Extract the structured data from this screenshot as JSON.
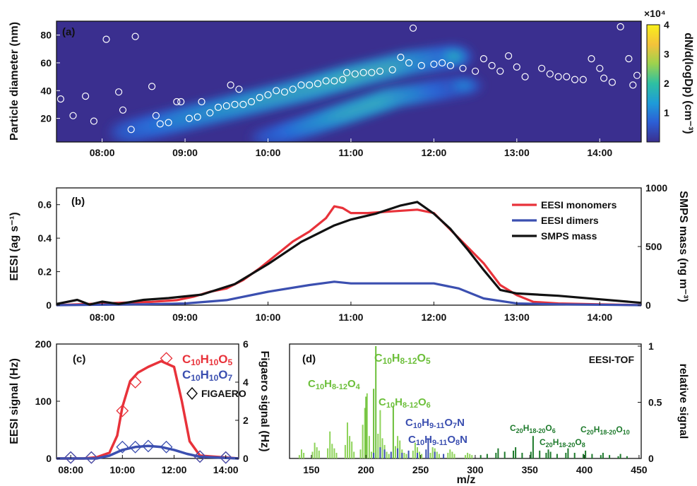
{
  "chart_data": [
    {
      "panel": "(a)",
      "type": "heatmap",
      "ylabel": "Particle diameter (nm)",
      "x_ticks": [
        "08:00",
        "09:00",
        "10:00",
        "11:00",
        "12:00",
        "13:00",
        "14:00"
      ],
      "y_ticks": [
        "20",
        "40",
        "60",
        "80"
      ],
      "xlim": [
        7.45,
        14.5
      ],
      "ylim": [
        3,
        90
      ],
      "colorbar": {
        "label": "dN/d(logDp) (cm⁻³)",
        "multiplier": "×10⁴",
        "ticks": [
          "1",
          "2",
          "3",
          "4"
        ],
        "range": [
          0,
          4
        ],
        "colors": [
          "#3a2f8f",
          "#2c5fd6",
          "#1e9bd9",
          "#2ec0a2",
          "#9ed24d",
          "#f3c23b",
          "#f9f01a"
        ]
      },
      "modes": [
        {
          "points": [
            [
              8.3,
              10,
              0.3
            ],
            [
              9.0,
              20,
              0.6
            ],
            [
              9.7,
              30,
              0.75
            ],
            [
              10.4,
              40,
              0.85
            ],
            [
              11.0,
              50,
              0.95
            ],
            [
              11.7,
              60,
              0.85
            ],
            [
              12.3,
              65,
              0.45
            ]
          ]
        },
        {
          "points": [
            [
              10.0,
              6,
              0.25
            ],
            [
              10.5,
              15,
              0.6
            ],
            [
              11.0,
              25,
              0.9
            ],
            [
              11.5,
              35,
              0.95
            ],
            [
              12.0,
              40,
              0.6
            ],
            [
              12.4,
              44,
              0.3
            ]
          ]
        }
      ],
      "circles": [
        [
          7.5,
          34
        ],
        [
          7.65,
          22
        ],
        [
          7.8,
          36
        ],
        [
          7.9,
          18
        ],
        [
          8.05,
          77
        ],
        [
          8.2,
          39
        ],
        [
          8.25,
          26
        ],
        [
          8.35,
          12
        ],
        [
          8.4,
          79
        ],
        [
          8.6,
          43
        ],
        [
          8.65,
          22
        ],
        [
          8.7,
          16
        ],
        [
          8.8,
          17
        ],
        [
          8.9,
          32
        ],
        [
          8.95,
          32
        ],
        [
          9.05,
          20
        ],
        [
          9.15,
          21
        ],
        [
          9.2,
          32
        ],
        [
          9.3,
          24
        ],
        [
          9.4,
          28
        ],
        [
          9.5,
          29
        ],
        [
          9.55,
          44
        ],
        [
          9.6,
          30
        ],
        [
          9.65,
          41
        ],
        [
          9.7,
          30
        ],
        [
          9.8,
          32
        ],
        [
          9.9,
          35
        ],
        [
          10.0,
          37
        ],
        [
          10.1,
          40
        ],
        [
          10.2,
          39
        ],
        [
          10.3,
          41
        ],
        [
          10.4,
          44
        ],
        [
          10.5,
          44
        ],
        [
          10.6,
          45
        ],
        [
          10.7,
          47
        ],
        [
          10.8,
          47
        ],
        [
          10.9,
          48
        ],
        [
          10.95,
          53
        ],
        [
          11.05,
          52
        ],
        [
          11.15,
          53
        ],
        [
          11.25,
          53
        ],
        [
          11.35,
          54
        ],
        [
          11.5,
          55
        ],
        [
          11.6,
          64
        ],
        [
          11.7,
          60
        ],
        [
          11.75,
          85
        ],
        [
          11.85,
          58
        ],
        [
          12.0,
          59
        ],
        [
          12.1,
          60
        ],
        [
          12.2,
          58
        ],
        [
          12.35,
          56
        ],
        [
          12.5,
          54
        ],
        [
          12.6,
          63
        ],
        [
          12.7,
          58
        ],
        [
          12.8,
          54
        ],
        [
          12.9,
          65
        ],
        [
          13.0,
          57
        ],
        [
          13.1,
          50
        ],
        [
          13.3,
          56
        ],
        [
          13.4,
          52
        ],
        [
          13.5,
          50
        ],
        [
          13.6,
          50
        ],
        [
          13.7,
          48
        ],
        [
          13.8,
          48
        ],
        [
          13.9,
          63
        ],
        [
          14.0,
          56
        ],
        [
          14.05,
          49
        ],
        [
          14.15,
          46
        ],
        [
          14.25,
          86
        ],
        [
          14.35,
          63
        ],
        [
          14.4,
          44
        ],
        [
          14.45,
          51
        ]
      ]
    },
    {
      "panel": "(b)",
      "type": "line",
      "ylabel": "EESI (ag s⁻¹)",
      "y2label": "SMPS mass (ng m⁻³)",
      "x_ticks": [
        "08:00",
        "09:00",
        "10:00",
        "11:00",
        "12:00",
        "13:00",
        "14:00"
      ],
      "y_ticks": [
        "0",
        "0.2",
        "0.4",
        "0.6"
      ],
      "y2_ticks": [
        "0",
        "500",
        "1000"
      ],
      "xlim": [
        7.45,
        14.5
      ],
      "ylim": [
        0,
        0.7
      ],
      "y2lim": [
        0,
        1000
      ],
      "legend_position": "top-right",
      "series": [
        {
          "name": "EESI monomers",
          "color": "#e8323a",
          "axis": "left",
          "x": [
            7.45,
            7.7,
            8.0,
            8.3,
            8.6,
            8.9,
            9.1,
            9.3,
            9.5,
            9.7,
            9.9,
            10.1,
            10.3,
            10.5,
            10.7,
            10.8,
            10.9,
            11.0,
            11.2,
            11.5,
            11.8,
            12.0,
            12.2,
            12.4,
            12.6,
            12.8,
            13.0,
            13.2,
            13.5,
            14.0,
            14.5
          ],
          "y": [
            0,
            0.005,
            0.01,
            0.015,
            0.02,
            0.03,
            0.05,
            0.08,
            0.1,
            0.15,
            0.22,
            0.3,
            0.38,
            0.44,
            0.52,
            0.59,
            0.58,
            0.55,
            0.55,
            0.56,
            0.57,
            0.55,
            0.45,
            0.35,
            0.25,
            0.12,
            0.06,
            0.02,
            0.01,
            0.005,
            0
          ]
        },
        {
          "name": "EESI dimers",
          "color": "#3b4fb0",
          "axis": "left",
          "x": [
            7.45,
            8.5,
            9.0,
            9.5,
            10.0,
            10.5,
            10.8,
            11.0,
            11.5,
            12.0,
            12.3,
            12.6,
            13.0,
            13.5,
            14.5
          ],
          "y": [
            0,
            0.005,
            0.01,
            0.03,
            0.08,
            0.12,
            0.14,
            0.13,
            0.13,
            0.13,
            0.1,
            0.04,
            0.01,
            0.005,
            0
          ]
        },
        {
          "name": "SMPS mass",
          "color": "#111111",
          "axis": "right",
          "x": [
            7.45,
            7.7,
            7.85,
            8.0,
            8.2,
            8.5,
            8.8,
            9.2,
            9.6,
            10.0,
            10.4,
            10.8,
            11.0,
            11.3,
            11.6,
            11.8,
            12.0,
            12.2,
            12.4,
            12.6,
            12.8,
            13.0,
            13.5,
            14.0,
            14.5
          ],
          "y": [
            10,
            45,
            5,
            30,
            10,
            45,
            60,
            90,
            180,
            350,
            540,
            680,
            730,
            780,
            850,
            880,
            780,
            650,
            480,
            300,
            130,
            100,
            80,
            50,
            20
          ]
        }
      ]
    },
    {
      "panel": "(c)",
      "type": "line",
      "ylabel": "EESI signal (Hz)",
      "y2label": "Figaero signal (Hz)",
      "x_ticks": [
        "08:00",
        "10:00",
        "12:00",
        "14:00"
      ],
      "y_ticks": [
        "0",
        "100",
        "200"
      ],
      "y2_ticks": [
        "0",
        "2",
        "4",
        "6"
      ],
      "xlim": [
        7.45,
        14.5
      ],
      "ylim": [
        0,
        200
      ],
      "y2lim": [
        0,
        6
      ],
      "legend": [
        {
          "parts": [
            "C",
            "10",
            "H",
            "10",
            "O",
            "5"
          ],
          "color": "#e8323a"
        },
        {
          "parts": [
            "C",
            "10",
            "H",
            "10",
            "O",
            "7"
          ],
          "color": "#3b4fb0"
        },
        {
          "label": "FIGAERO",
          "color": "#111111"
        }
      ],
      "series": [
        {
          "name": "C10H10O5",
          "color": "#e8323a",
          "axis": "left",
          "x": [
            7.45,
            8.5,
            9.0,
            9.5,
            9.8,
            10.0,
            10.3,
            10.6,
            11.0,
            11.5,
            12.0,
            12.3,
            12.6,
            13.0,
            14.5
          ],
          "y": [
            0,
            0,
            2,
            10,
            40,
            90,
            135,
            150,
            160,
            170,
            160,
            100,
            30,
            5,
            0
          ]
        },
        {
          "name": "C10H10O7",
          "color": "#3b4fb0",
          "axis": "left",
          "x": [
            7.45,
            9.0,
            9.5,
            10.0,
            10.5,
            11.0,
            11.5,
            12.0,
            12.5,
            13.0,
            14.5
          ],
          "y": [
            0,
            0,
            5,
            15,
            20,
            22,
            20,
            15,
            8,
            3,
            0
          ]
        }
      ],
      "markers": [
        {
          "color": "#e8323a",
          "axis": "right",
          "x": [
            8.0,
            8.8,
            10.0,
            10.5,
            11.7,
            13.0,
            14.0
          ],
          "y": [
            0.05,
            0.05,
            2.5,
            4.0,
            5.25,
            0.1,
            0.05
          ]
        },
        {
          "color": "#3b4fb0",
          "axis": "right",
          "x": [
            8.0,
            8.8,
            10.0,
            10.5,
            11.0,
            11.7,
            13.0,
            14.0
          ],
          "y": [
            0.05,
            0.05,
            0.6,
            0.6,
            0.65,
            0.6,
            0.1,
            0.05
          ]
        }
      ]
    },
    {
      "panel": "(d)",
      "type": "bar",
      "title": "EESI-TOF",
      "xlabel": "m/z",
      "y2label": "relative signal",
      "x_ticks": [
        "150",
        "200",
        "250",
        "300",
        "350",
        "400",
        "450"
      ],
      "y2_ticks": [
        "0",
        "0.5",
        "1"
      ],
      "xlim": [
        130,
        452
      ],
      "ylim": [
        0,
        1
      ],
      "annotations": [
        {
          "parts": [
            "C",
            "10",
            "H",
            "8-12",
            "O",
            "5"
          ],
          "color": "#6cbf3a"
        },
        {
          "parts": [
            "C",
            "10",
            "H",
            "8-12",
            "O",
            "4"
          ],
          "color": "#6cbf3a"
        },
        {
          "parts": [
            "C",
            "10",
            "H",
            "8-12",
            "O",
            "6"
          ],
          "color": "#6cbf3a"
        },
        {
          "parts": [
            "C",
            "10",
            "H",
            "9-11",
            "O",
            "7",
            "N",
            ""
          ],
          "color": "#3b4fb0"
        },
        {
          "parts": [
            "C",
            "10",
            "H",
            "9-11",
            "O",
            "8",
            "N",
            ""
          ],
          "color": "#3b4fb0"
        },
        {
          "parts": [
            "C",
            "20",
            "H",
            "18-20",
            "O",
            "6"
          ],
          "color": "#1e7a2c"
        },
        {
          "parts": [
            "C",
            "20",
            "H",
            "18-20",
            "O",
            "8"
          ],
          "color": "#1e7a2c"
        },
        {
          "parts": [
            "C",
            "20",
            "H",
            "18-20",
            "O",
            "10"
          ],
          "color": "#1e7a2c"
        }
      ],
      "bars": [
        {
          "color": "#8ed35a",
          "mz": [
            139,
            141,
            143,
            151,
            153,
            155,
            157,
            165,
            167,
            169,
            171,
            173,
            181,
            183,
            185,
            187,
            189,
            195,
            197,
            199,
            201,
            203,
            205,
            211,
            213,
            215,
            217,
            219,
            221,
            227,
            229,
            231,
            233,
            235,
            237,
            243,
            245,
            247,
            249,
            251,
            259,
            261,
            263,
            265,
            267,
            275,
            277,
            279,
            281,
            291,
            293,
            295,
            297
          ],
          "v": [
            0.03,
            0.08,
            0.05,
            0.06,
            0.14,
            0.1,
            0.07,
            0.09,
            0.24,
            0.13,
            0.09,
            0.05,
            0.12,
            0.32,
            0.2,
            0.15,
            0.06,
            0.08,
            0.3,
            0.45,
            0.58,
            0.2,
            0.06,
            0.22,
            0.43,
            0.18,
            0.12,
            0.06,
            0.04,
            0.11,
            0.2,
            0.16,
            0.08,
            0.05,
            0.04,
            0.07,
            0.14,
            0.1,
            0.06,
            0.04,
            0.05,
            0.1,
            0.09,
            0.06,
            0.04,
            0.05,
            0.08,
            0.06,
            0.04,
            0.03,
            0.05,
            0.04,
            0.03
          ]
        },
        {
          "color": "#6cbf3a",
          "mz": [
            200,
            207,
            209,
            225
          ],
          "v": [
            0.55,
            0.62,
            1.0,
            0.47
          ]
        },
        {
          "color": "#3b4fb0",
          "mz": [
            207,
            213,
            217,
            223,
            229,
            233,
            239,
            247,
            255,
            257,
            263,
            271
          ],
          "v": [
            0.05,
            0.1,
            0.08,
            0.06,
            0.09,
            0.05,
            0.07,
            0.05,
            0.08,
            0.18,
            0.06,
            0.04
          ]
        },
        {
          "color": "#1e7a2c",
          "mz": [
            305,
            311,
            319,
            321,
            327,
            335,
            337,
            343,
            351,
            353,
            359,
            365,
            367,
            369,
            375,
            383,
            385,
            391,
            399,
            401,
            407,
            415,
            417,
            423,
            431,
            433,
            439
          ],
          "v": [
            0.03,
            0.04,
            0.05,
            0.09,
            0.06,
            0.07,
            0.1,
            0.05,
            0.06,
            0.2,
            0.07,
            0.05,
            0.08,
            0.06,
            0.04,
            0.05,
            0.09,
            0.05,
            0.04,
            0.07,
            0.04,
            0.03,
            0.05,
            0.03,
            0.02,
            0.04,
            0.02
          ]
        }
      ]
    }
  ]
}
